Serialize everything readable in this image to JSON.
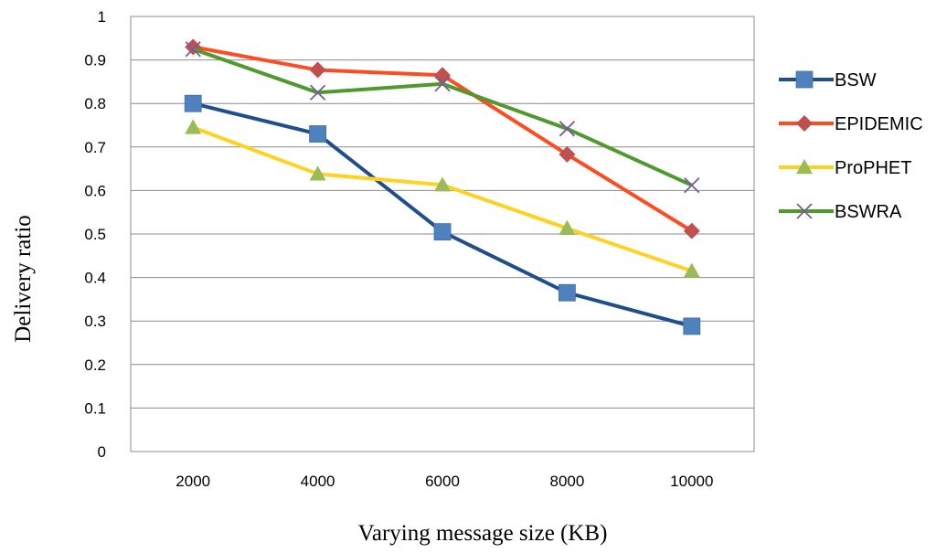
{
  "chart_data": {
    "type": "line",
    "xlabel": "Varying message size  (KB)",
    "ylabel": "Delivery ratio",
    "categories": [
      "2000",
      "4000",
      "6000",
      "8000",
      "10000"
    ],
    "ylim": [
      0,
      1
    ],
    "yticks": [
      "0",
      "0.1",
      "0.2",
      "0.3",
      "0.4",
      "0.5",
      "0.6",
      "0.7",
      "0.8",
      "0.9",
      "1"
    ],
    "grid": true,
    "legend_position": "right",
    "series": [
      {
        "name": "BSW",
        "values": [
          0.8,
          0.73,
          0.505,
          0.365,
          0.288
        ],
        "color": "#1F4E8C",
        "marker": "square",
        "marker_color": "#4F81BD"
      },
      {
        "name": "EPIDEMIC",
        "values": [
          0.93,
          0.877,
          0.865,
          0.683,
          0.507
        ],
        "color": "#FF4B1F",
        "marker": "diamond",
        "marker_color": "#C0504D"
      },
      {
        "name": "ProPHET",
        "values": [
          0.745,
          0.638,
          0.613,
          0.513,
          0.415
        ],
        "color": "#FFD21F",
        "marker": "triangle",
        "marker_color": "#9BBB59"
      },
      {
        "name": "BSWRA",
        "values": [
          0.925,
          0.825,
          0.845,
          0.742,
          0.612
        ],
        "color": "#4F9A2E",
        "marker": "x",
        "marker_color": "#7A5C9A"
      }
    ]
  }
}
